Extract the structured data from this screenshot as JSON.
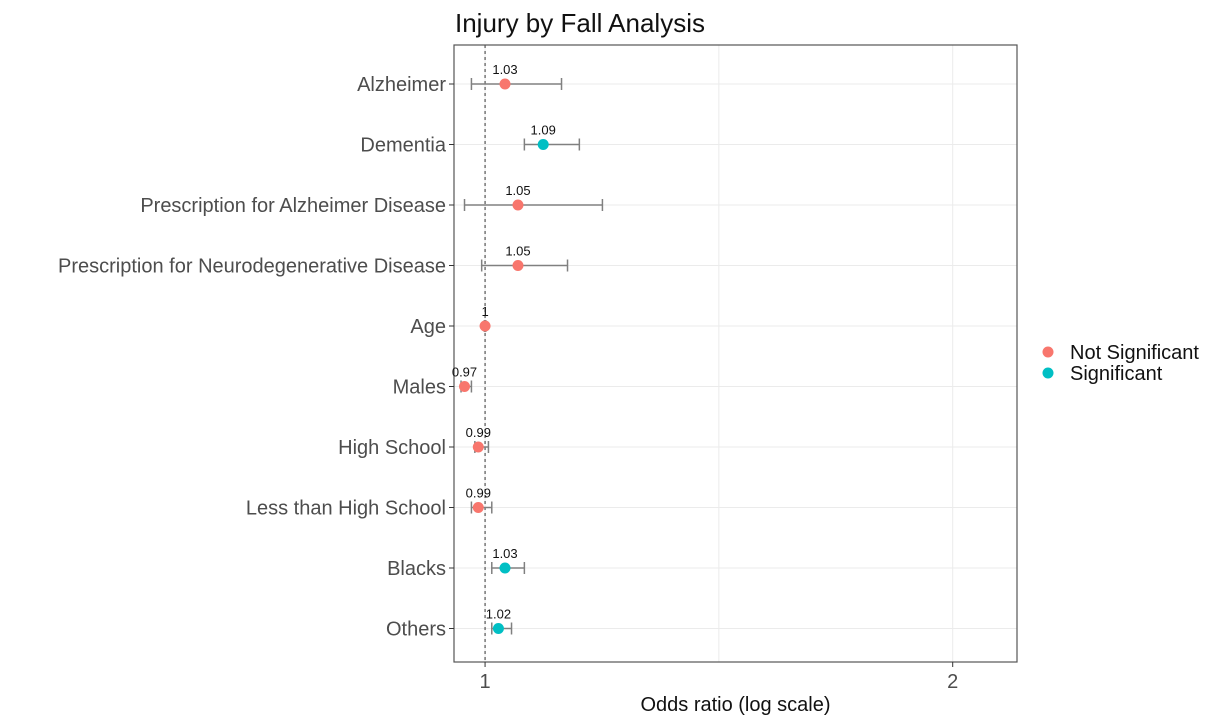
{
  "chart_data": {
    "type": "scatter",
    "title": "Injury by Fall Analysis",
    "xlabel": "Odds ratio (log scale)",
    "ylabel": "",
    "x_scale": "log",
    "xlim": [
      0.955,
      2.2
    ],
    "x_ticks": [
      1,
      2
    ],
    "reference_line": 1,
    "grid": true,
    "legend_position": "right",
    "colors": {
      "Not Significant": "#F8766D",
      "Significant": "#00BFC4"
    },
    "legend": [
      "Not Significant",
      "Significant"
    ],
    "categories": [
      "Alzheimer",
      "Dementia",
      "Prescription for Alzheimer Disease",
      "Prescription for Neurodegenerative Disease",
      "Age",
      "Males",
      "High School",
      "Less than High School",
      "Blacks",
      "Others"
    ],
    "points": [
      {
        "label": "1.03",
        "or": 1.03,
        "lo": 0.98,
        "hi": 1.12,
        "group": "Not Significant"
      },
      {
        "label": "1.09",
        "or": 1.09,
        "lo": 1.06,
        "hi": 1.15,
        "group": "Significant"
      },
      {
        "label": "1.05",
        "or": 1.05,
        "lo": 0.97,
        "hi": 1.19,
        "group": "Not Significant"
      },
      {
        "label": "1.05",
        "or": 1.05,
        "lo": 0.995,
        "hi": 1.13,
        "group": "Not Significant"
      },
      {
        "label": "1",
        "or": 1.0,
        "lo": 0.999,
        "hi": 1.001,
        "group": "Not Significant"
      },
      {
        "label": "0.97",
        "or": 0.97,
        "lo": 0.965,
        "hi": 0.98,
        "group": "Not Significant"
      },
      {
        "label": "0.99",
        "or": 0.99,
        "lo": 0.985,
        "hi": 1.005,
        "group": "Not Significant"
      },
      {
        "label": "0.99",
        "or": 0.99,
        "lo": 0.98,
        "hi": 1.01,
        "group": "Not Significant"
      },
      {
        "label": "1.03",
        "or": 1.03,
        "lo": 1.01,
        "hi": 1.06,
        "group": "Significant"
      },
      {
        "label": "1.02",
        "or": 1.02,
        "lo": 1.01,
        "hi": 1.04,
        "group": "Significant"
      }
    ]
  }
}
